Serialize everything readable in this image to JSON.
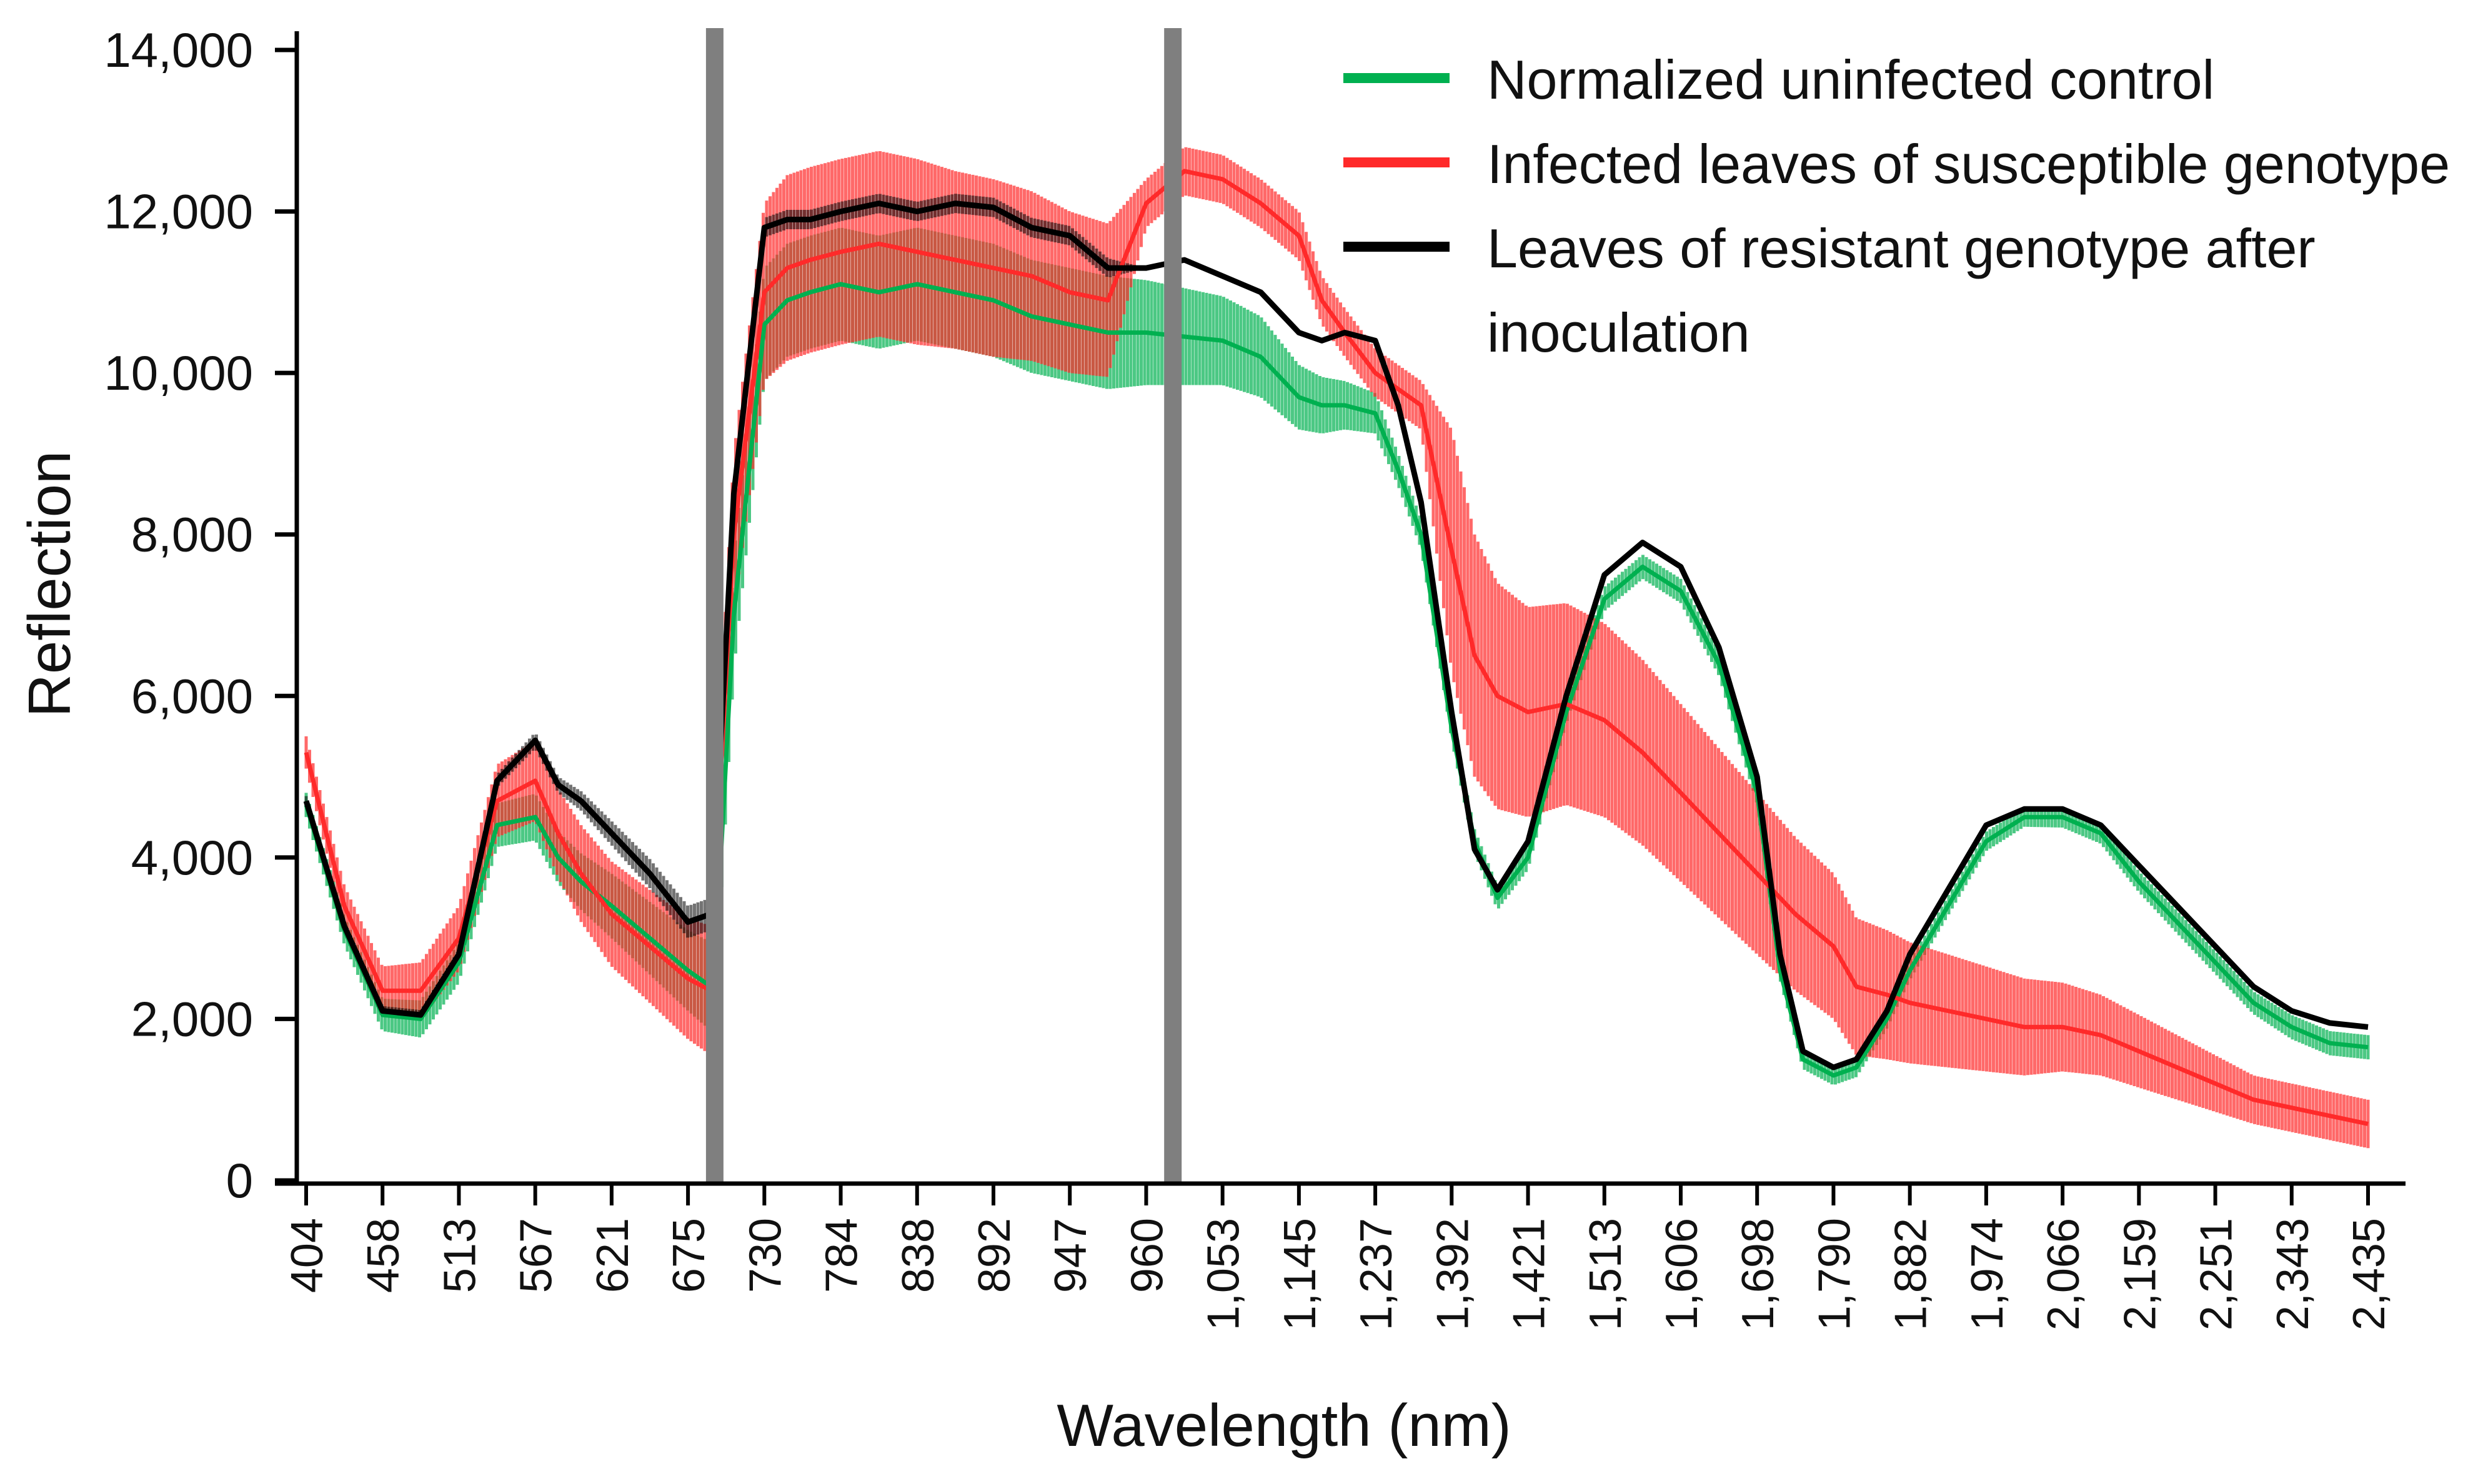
{
  "chart_data": {
    "type": "line",
    "title": "",
    "xlabel": "Wavelength (nm)",
    "ylabel": "Reflection",
    "ylim": [
      0,
      14000
    ],
    "yticks": [
      0,
      2000,
      4000,
      6000,
      8000,
      10000,
      12000,
      14000
    ],
    "ytick_labels": [
      "0",
      "2,000",
      "4,000",
      "6,000",
      "8,000",
      "10,000",
      "12,000",
      "14,000"
    ],
    "xtick_labels": [
      "404",
      "458",
      "513",
      "567",
      "621",
      "675",
      "730",
      "784",
      "838",
      "892",
      "947",
      "960",
      "1,053",
      "1,145",
      "1,237",
      "1,392",
      "1,421",
      "1,513",
      "1,606",
      "1,698",
      "1,790",
      "1,882",
      "1,974",
      "2,066",
      "2,159",
      "2,251",
      "2,343",
      "2,435"
    ],
    "x_index_range": [
      0,
      27
    ],
    "markers": [
      5.35,
      11.35
    ],
    "legend_position": "top-right",
    "grid": false,
    "series": [
      {
        "name": "Normalized uninfected control",
        "color": "#00b050",
        "x": [
          0,
          0.5,
          1,
          1.5,
          2,
          2.5,
          3,
          3.3,
          3.6,
          4,
          4.5,
          5,
          5.3,
          5.35,
          5.6,
          6,
          6.3,
          6.6,
          7,
          7.5,
          8,
          8.5,
          9,
          9.5,
          10,
          10.5,
          11,
          11.5,
          12,
          12.5,
          13,
          13.3,
          13.6,
          14,
          14.3,
          14.6,
          15,
          15.3,
          15.6,
          16,
          16.5,
          17,
          17.5,
          18,
          18.5,
          19,
          19.3,
          19.6,
          20,
          20.3,
          20.7,
          21,
          21.5,
          22,
          22.5,
          23,
          23.5,
          24,
          24.5,
          25,
          25.5,
          26,
          26.5,
          27
        ],
        "y": [
          4650,
          3100,
          2050,
          2000,
          2700,
          4400,
          4500,
          4000,
          3700,
          3400,
          3000,
          2600,
          2400,
          2600,
          7000,
          10600,
          10900,
          11000,
          11100,
          11000,
          11100,
          11000,
          10900,
          10700,
          10600,
          10500,
          10500,
          10450,
          10400,
          10200,
          9700,
          9600,
          9600,
          9500,
          8800,
          8000,
          5600,
          4200,
          3500,
          4000,
          5800,
          7200,
          7600,
          7300,
          6400,
          4800,
          2600,
          1500,
          1300,
          1400,
          2000,
          2600,
          3400,
          4200,
          4500,
          4500,
          4300,
          3700,
          3200,
          2700,
          2200,
          1900,
          1700,
          1650
        ],
        "err": [
          150,
          180,
          200,
          230,
          250,
          270,
          290,
          320,
          350,
          400,
          450,
          500,
          550,
          600,
          700,
          700,
          700,
          700,
          700,
          700,
          700,
          700,
          700,
          700,
          700,
          700,
          650,
          600,
          550,
          500,
          400,
          350,
          300,
          250,
          200,
          180,
          150,
          150,
          150,
          150,
          150,
          150,
          150,
          150,
          150,
          150,
          120,
          120,
          120,
          120,
          120,
          120,
          120,
          120,
          120,
          130,
          130,
          130,
          140,
          140,
          140,
          150,
          150,
          150
        ]
      },
      {
        "name": "Infected leaves of susceptible genotype",
        "color": "#ff2a2a",
        "x": [
          0,
          0.5,
          1,
          1.5,
          2,
          2.5,
          3,
          3.3,
          3.6,
          4,
          4.5,
          5,
          5.3,
          5.35,
          5.6,
          6,
          6.3,
          6.6,
          7,
          7.5,
          8,
          8.5,
          9,
          9.5,
          10,
          10.5,
          11,
          11.5,
          12,
          12.5,
          13,
          13.3,
          13.6,
          14,
          14.3,
          14.6,
          15,
          15.3,
          15.6,
          16,
          16.5,
          17,
          17.5,
          18,
          18.5,
          19,
          19.5,
          20,
          20.3,
          20.7,
          21,
          21.5,
          22,
          22.5,
          23,
          23.5,
          24,
          24.5,
          25,
          25.5,
          26,
          26.5,
          27
        ],
        "y": [
          5300,
          3400,
          2350,
          2350,
          3000,
          4700,
          4950,
          4300,
          3800,
          3300,
          2900,
          2500,
          2350,
          3700,
          8000,
          11000,
          11300,
          11400,
          11500,
          11600,
          11500,
          11400,
          11300,
          11200,
          11000,
          10900,
          12100,
          12500,
          12400,
          12100,
          11700,
          10900,
          10500,
          10000,
          9800,
          9600,
          7800,
          6500,
          6000,
          5800,
          5900,
          5700,
          5300,
          4800,
          4300,
          3800,
          3300,
          2900,
          2400,
          2300,
          2200,
          2100,
          2000,
          1900,
          1900,
          1800,
          1600,
          1400,
          1200,
          1000,
          900,
          800,
          700
        ],
        "err": [
          200,
          250,
          300,
          350,
          400,
          450,
          500,
          550,
          600,
          650,
          700,
          750,
          800,
          850,
          1000,
          1100,
          1150,
          1150,
          1150,
          1150,
          1150,
          1100,
          1100,
          1050,
          1000,
          950,
          300,
          300,
          300,
          300,
          300,
          300,
          300,
          300,
          300,
          300,
          1500,
          1500,
          1400,
          1300,
          1250,
          1200,
          1150,
          1100,
          1050,
          1000,
          950,
          900,
          850,
          800,
          750,
          700,
          650,
          600,
          550,
          500,
          450,
          400,
          350,
          300,
          300,
          300,
          300
        ]
      },
      {
        "name": "Leaves of resistant genotype after inoculation",
        "color": "#000000",
        "x": [
          0,
          0.5,
          1,
          1.5,
          2,
          2.5,
          3,
          3.3,
          3.6,
          4,
          4.5,
          5,
          5.3,
          5.35,
          5.6,
          6,
          6.3,
          6.6,
          7,
          7.5,
          8,
          8.5,
          9,
          9.5,
          10,
          10.5,
          11,
          11.5,
          12,
          12.5,
          13,
          13.3,
          13.6,
          14,
          14.3,
          14.6,
          15,
          15.3,
          15.6,
          16,
          16.5,
          17,
          17.5,
          18,
          18.5,
          19,
          19.3,
          19.6,
          20,
          20.3,
          20.7,
          21,
          21.5,
          22,
          22.5,
          23,
          23.5,
          24,
          24.5,
          25,
          25.5,
          26,
          26.5,
          27
        ],
        "y": [
          4700,
          3150,
          2100,
          2050,
          2800,
          4950,
          5450,
          4900,
          4700,
          4300,
          3800,
          3200,
          3300,
          4000,
          8500,
          11800,
          11900,
          11900,
          12000,
          12100,
          12000,
          12100,
          12050,
          11800,
          11700,
          11300,
          11300,
          11400,
          11200,
          11000,
          10500,
          10400,
          10500,
          10400,
          9600,
          8400,
          5800,
          4100,
          3600,
          4200,
          6000,
          7500,
          7900,
          7600,
          6600,
          5000,
          2800,
          1600,
          1400,
          1500,
          2100,
          2800,
          3600,
          4400,
          4600,
          4600,
          4400,
          3900,
          3400,
          2900,
          2400,
          2100,
          1950,
          1900
        ],
        "err": [
          60,
          60,
          60,
          60,
          60,
          80,
          100,
          100,
          120,
          150,
          180,
          200,
          200,
          200,
          120,
          120,
          120,
          120,
          120,
          120,
          120,
          120,
          120,
          120,
          120,
          120,
          0,
          0,
          0,
          0,
          0,
          0,
          0,
          0,
          0,
          0,
          0,
          0,
          0,
          0,
          0,
          0,
          0,
          0,
          0,
          0,
          0,
          0,
          0,
          0,
          0,
          0,
          0,
          0,
          0,
          0,
          0,
          0,
          0,
          0,
          0,
          0,
          0,
          0
        ]
      }
    ]
  },
  "legend": {
    "items": [
      {
        "label_lines": [
          "Normalized uninfected control"
        ],
        "color": "#00b050"
      },
      {
        "label_lines": [
          "Infected leaves of susceptible genotype"
        ],
        "color": "#ff2a2a"
      },
      {
        "label_lines": [
          "Leaves of resistant genotype after",
          "inoculation"
        ],
        "color": "#000000"
      }
    ]
  }
}
